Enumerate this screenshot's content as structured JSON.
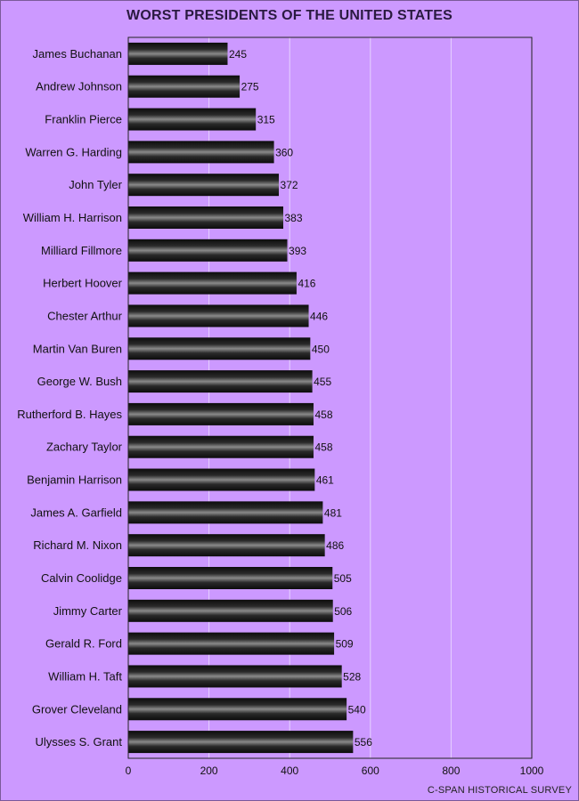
{
  "chart_data": {
    "type": "bar",
    "orientation": "horizontal",
    "title": "WORST PRESIDENTS OF THE UNITED STATES",
    "source": "C-SPAN HISTORICAL SURVEY",
    "categories": [
      "James Buchanan",
      "Andrew Johnson",
      "Franklin Pierce",
      "Warren G. Harding",
      "John Tyler",
      "William H. Harrison",
      "Milliard Fillmore",
      "Herbert Hoover",
      "Chester Arthur",
      "Martin Van Buren",
      "George W. Bush",
      "Rutherford B. Hayes",
      "Zachary Taylor",
      "Benjamin Harrison",
      "James A. Garfield",
      "Richard M. Nixon",
      "Calvin Coolidge",
      "Jimmy Carter",
      "Gerald R. Ford",
      "William H. Taft",
      "Grover Cleveland",
      "Ulysses S. Grant"
    ],
    "values": [
      245,
      275,
      315,
      360,
      372,
      383,
      393,
      416,
      446,
      450,
      455,
      458,
      458,
      461,
      481,
      486,
      505,
      506,
      509,
      528,
      540,
      556
    ],
    "xlim": [
      0,
      1000
    ],
    "xticks": [
      0,
      200,
      400,
      600,
      800,
      1000
    ],
    "grid": true,
    "colors": {
      "background": "#cc99ff",
      "bar": "#1a1a1a",
      "bar_highlight": "#8a8a8a"
    }
  }
}
